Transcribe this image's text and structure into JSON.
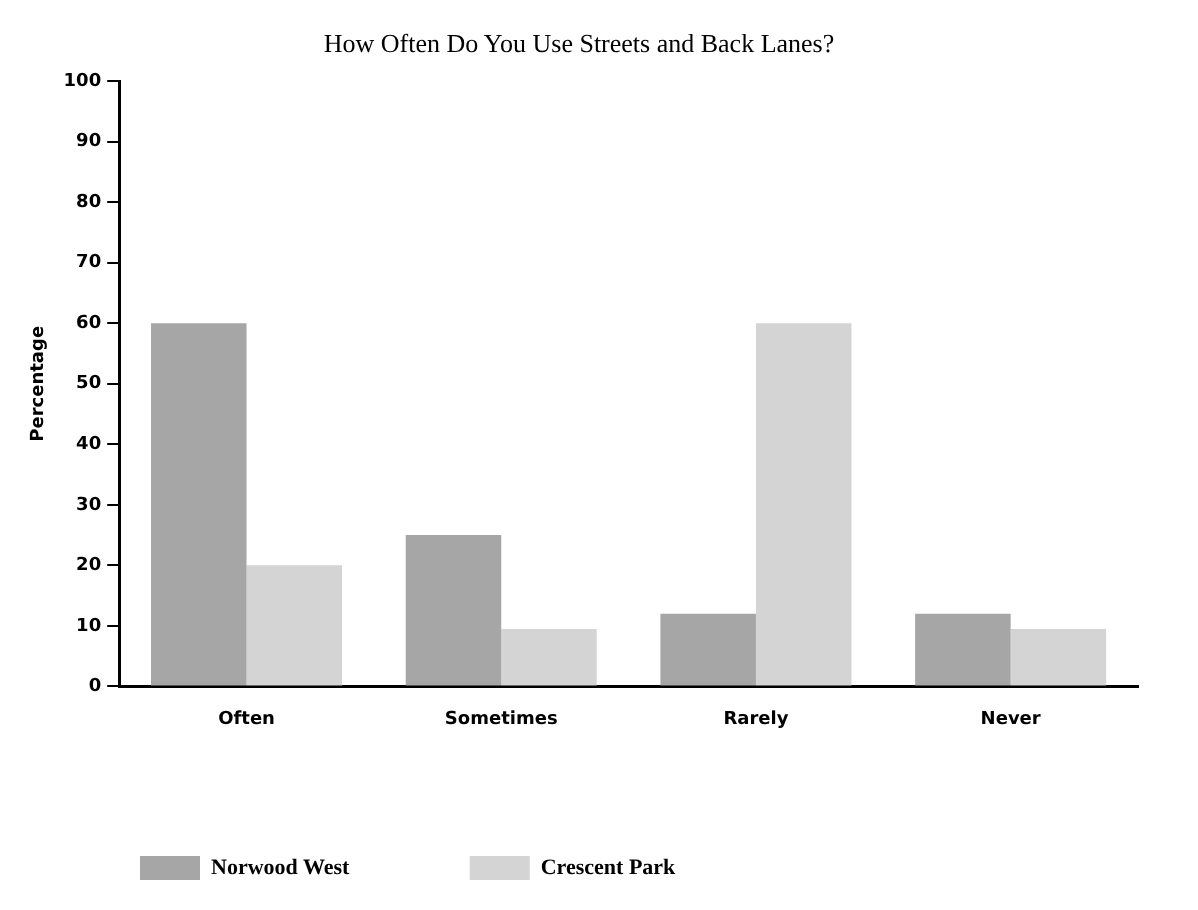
{
  "chart_data": {
    "type": "bar",
    "title": "How Often Do You Use Streets and Back Lanes?",
    "ylabel": "Percentage",
    "categories": [
      "Often",
      "Sometimes",
      "Rarely",
      "Never"
    ],
    "series": [
      {
        "name": "Norwood West",
        "color": "#a6a6a6",
        "values": [
          60,
          25,
          12,
          12
        ]
      },
      {
        "name": "Crescent Park",
        "color": "#d4d4d4",
        "values": [
          20,
          9.5,
          60,
          9.5
        ]
      }
    ],
    "ylim": [
      0,
      100
    ],
    "yticks": [
      0,
      10,
      20,
      30,
      40,
      50,
      60,
      70,
      80,
      90,
      100
    ],
    "grid": false,
    "legend": "bottom"
  }
}
